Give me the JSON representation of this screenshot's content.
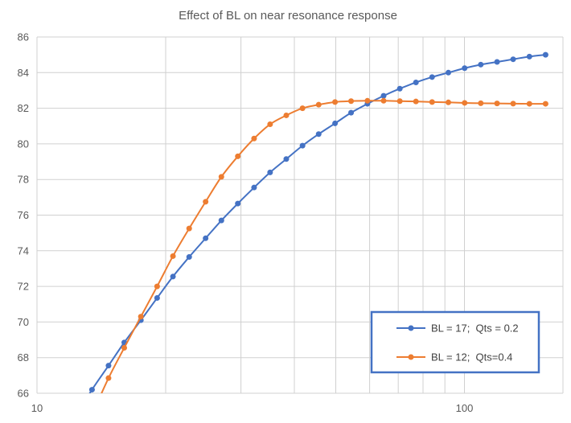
{
  "chart_data": {
    "type": "line",
    "title": "Effect of BL on near resonance response",
    "xlabel": "",
    "ylabel": "",
    "x_scale": "log",
    "xlim": [
      10,
      170
    ],
    "ylim": [
      66,
      86
    ],
    "x_ticks": [
      10,
      100
    ],
    "x_tick_labels": [
      "10",
      "100"
    ],
    "x_minor_gridlines": [
      20,
      30,
      40,
      50,
      60,
      70,
      80,
      90
    ],
    "y_ticks": [
      66,
      68,
      70,
      72,
      74,
      76,
      78,
      80,
      82,
      84,
      86
    ],
    "y_tick_labels": [
      "66",
      "68",
      "70",
      "72",
      "74",
      "76",
      "78",
      "80",
      "82",
      "84",
      "86"
    ],
    "grid": true,
    "legend_position": "bottom-right",
    "series": [
      {
        "name": "BL = 17;  Qts = 0.2",
        "color": "#4472C4",
        "x": [
          13.45,
          14.7,
          16.0,
          17.5,
          19.1,
          20.8,
          22.7,
          24.8,
          27.0,
          29.5,
          32.2,
          35.1,
          38.3,
          41.8,
          45.6,
          49.8,
          54.3,
          59.3,
          64.7,
          70.6,
          77.0,
          84.0,
          91.7,
          100.1,
          109.2,
          119.2,
          130.0,
          141.9,
          154.8
        ],
        "values": [
          66.2,
          67.55,
          68.85,
          70.1,
          71.35,
          72.55,
          73.65,
          74.7,
          75.7,
          76.65,
          77.55,
          78.4,
          79.15,
          79.9,
          80.55,
          81.15,
          81.75,
          82.25,
          82.7,
          83.1,
          83.45,
          83.75,
          84.0,
          84.25,
          84.45,
          84.6,
          84.75,
          84.9,
          85.0
        ]
      },
      {
        "name": "BL = 12;  Qts=0.4",
        "color": "#ED7D31",
        "x": [
          14.7,
          16.0,
          17.5,
          19.1,
          20.8,
          22.7,
          24.8,
          27.0,
          29.5,
          32.2,
          35.1,
          38.3,
          41.8,
          45.6,
          49.8,
          54.3,
          59.3,
          64.7,
          70.6,
          77.0,
          84.0,
          91.7,
          100.1,
          109.2,
          119.2,
          130.0,
          141.9,
          154.8
        ],
        "values": [
          66.85,
          68.55,
          70.3,
          72.0,
          73.7,
          75.25,
          76.75,
          78.15,
          79.3,
          80.3,
          81.1,
          81.6,
          82.0,
          82.2,
          82.35,
          82.4,
          82.42,
          82.42,
          82.4,
          82.38,
          82.35,
          82.33,
          82.3,
          82.28,
          82.27,
          82.26,
          82.25,
          82.25
        ]
      }
    ]
  }
}
